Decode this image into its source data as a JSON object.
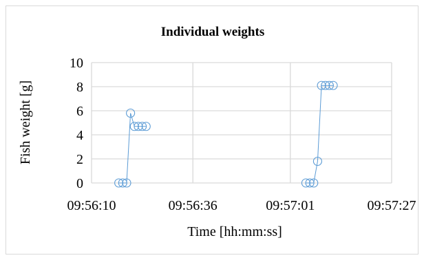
{
  "chart_data": {
    "type": "scatter",
    "title": "Individual weights",
    "xlabel": "Time [hh:mm:ss]",
    "ylabel": "Fish weight [g]",
    "x_tick_labels": [
      "09:56:10",
      "09:56:36",
      "09:57:01",
      "09:57:27"
    ],
    "x_ticks": [
      "09:56:10",
      "09:56:36",
      "09:57:01",
      "09:57:27"
    ],
    "xlim": [
      "09:56:10",
      "09:57:27"
    ],
    "y_ticks": [
      0,
      2,
      4,
      6,
      8,
      10
    ],
    "ylim": [
      0,
      10
    ],
    "grid": true,
    "legend": "none",
    "series": [
      {
        "color": "#5b9bd5",
        "marker": "open-circle",
        "points": [
          {
            "x": "09:56:17",
            "y": 0
          },
          {
            "x": "09:56:18",
            "y": 0
          },
          {
            "x": "09:56:19",
            "y": 0
          },
          {
            "x": "09:56:20",
            "y": 5.8
          },
          {
            "x": "09:56:21",
            "y": 4.7
          },
          {
            "x": "09:56:22",
            "y": 4.7
          },
          {
            "x": "09:56:23",
            "y": 4.7
          },
          {
            "x": "09:56:24",
            "y": 4.7
          }
        ]
      },
      {
        "color": "#5b9bd5",
        "marker": "open-circle",
        "points": [
          {
            "x": "09:57:05",
            "y": 0
          },
          {
            "x": "09:57:06",
            "y": 0
          },
          {
            "x": "09:57:07",
            "y": 0
          },
          {
            "x": "09:57:08",
            "y": 1.8
          },
          {
            "x": "09:57:09",
            "y": 8.1
          },
          {
            "x": "09:57:10",
            "y": 8.1
          },
          {
            "x": "09:57:11",
            "y": 8.1
          },
          {
            "x": "09:57:12",
            "y": 8.1
          }
        ]
      }
    ]
  }
}
